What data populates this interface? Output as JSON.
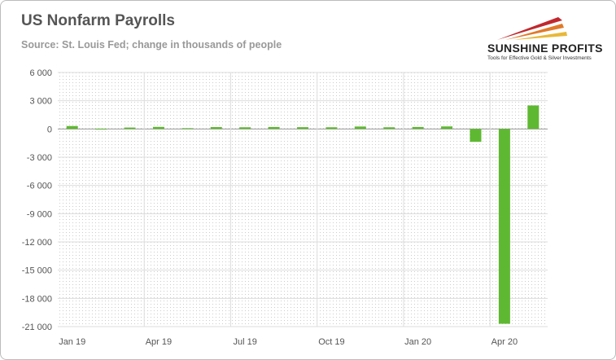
{
  "chart_data": {
    "type": "bar",
    "title": "US Nonfarm Payrolls",
    "subtitle": "Source: St. Louis Fed; change in thousands of people",
    "categories": [
      "Jan 19",
      "Feb 19",
      "Mar 19",
      "Apr 19",
      "May 19",
      "Jun 19",
      "Jul 19",
      "Aug 19",
      "Sep 19",
      "Oct 19",
      "Nov 19",
      "Dec 19",
      "Jan 20",
      "Feb 20",
      "Mar 20",
      "Apr 20",
      "May 20"
    ],
    "x_tick_labels": [
      "Jan 19",
      "Apr 19",
      "Jul 19",
      "Oct 19",
      "Jan 20",
      "Apr 20"
    ],
    "values": [
      310,
      20,
      150,
      220,
      80,
      200,
      180,
      210,
      190,
      180,
      260,
      180,
      210,
      270,
      -1370,
      -20700,
      2500
    ],
    "ylim": [
      -21000,
      6000
    ],
    "y_ticks": [
      6000,
      3000,
      0,
      -3000,
      -6000,
      -9000,
      -12000,
      -15000,
      -18000,
      -21000
    ],
    "y_tick_labels": [
      "6 000",
      "3 000",
      "0",
      "-3 000",
      "-6 000",
      "-9 000",
      "-12 000",
      "-15 000",
      "-18 000",
      "-21 000"
    ],
    "xlabel": "",
    "ylabel": "",
    "grid": true,
    "legend": "none",
    "bar_color": "#5fb832"
  },
  "logo": {
    "name": "SUNSHINE PROFITS",
    "tagline": "Tools for Effective Gold & Silver Investments"
  }
}
